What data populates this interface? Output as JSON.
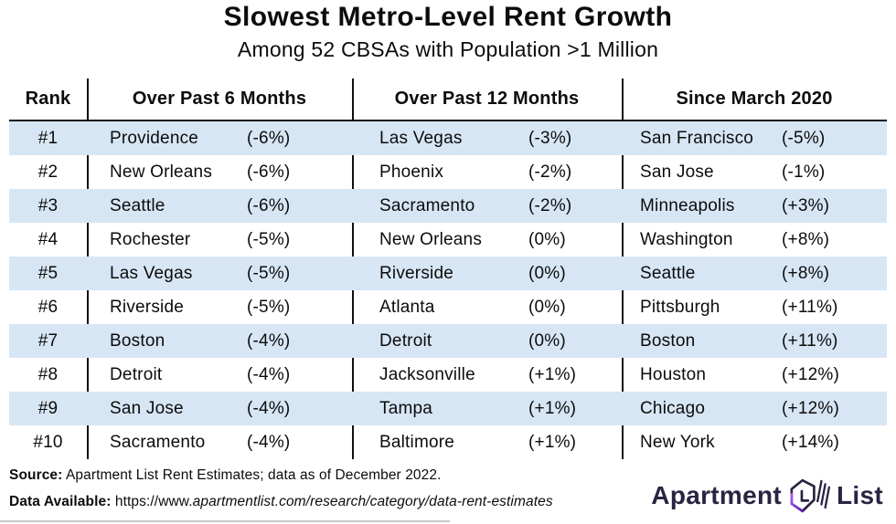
{
  "title": "Slowest Metro-Level Rent Growth",
  "subtitle": "Among 52 CBSAs with Population >1 Million",
  "chart_data": {
    "type": "table",
    "title": "Slowest Metro-Level Rent Growth",
    "subtitle": "Among 52 CBSAs with Population >1 Million",
    "columns": [
      "Rank",
      "Over Past 6 Months",
      "Over Past 12 Months",
      "Since March 2020"
    ],
    "rows": [
      {
        "rank": "#1",
        "m6_city": "Providence",
        "m6_pct": "(-6%)",
        "m12_city": "Las Vegas",
        "m12_pct": "(-3%)",
        "s20_city": "San Francisco",
        "s20_pct": "(-5%)"
      },
      {
        "rank": "#2",
        "m6_city": "New Orleans",
        "m6_pct": "(-6%)",
        "m12_city": "Phoenix",
        "m12_pct": "(-2%)",
        "s20_city": "San Jose",
        "s20_pct": "(-1%)"
      },
      {
        "rank": "#3",
        "m6_city": "Seattle",
        "m6_pct": "(-6%)",
        "m12_city": "Sacramento",
        "m12_pct": "(-2%)",
        "s20_city": "Minneapolis",
        "s20_pct": "(+3%)"
      },
      {
        "rank": "#4",
        "m6_city": "Rochester",
        "m6_pct": "(-5%)",
        "m12_city": "New Orleans",
        "m12_pct": "(0%)",
        "s20_city": "Washington",
        "s20_pct": "(+8%)"
      },
      {
        "rank": "#5",
        "m6_city": "Las Vegas",
        "m6_pct": "(-5%)",
        "m12_city": "Riverside",
        "m12_pct": "(0%)",
        "s20_city": "Seattle",
        "s20_pct": "(+8%)"
      },
      {
        "rank": "#6",
        "m6_city": "Riverside",
        "m6_pct": "(-5%)",
        "m12_city": "Atlanta",
        "m12_pct": "(0%)",
        "s20_city": "Pittsburgh",
        "s20_pct": "(+11%)"
      },
      {
        "rank": "#7",
        "m6_city": "Boston",
        "m6_pct": "(-4%)",
        "m12_city": "Detroit",
        "m12_pct": "(0%)",
        "s20_city": "Boston",
        "s20_pct": "(+11%)"
      },
      {
        "rank": "#8",
        "m6_city": "Detroit",
        "m6_pct": "(-4%)",
        "m12_city": "Jacksonville",
        "m12_pct": "(+1%)",
        "s20_city": "Houston",
        "s20_pct": "(+12%)"
      },
      {
        "rank": "#9",
        "m6_city": "San Jose",
        "m6_pct": "(-4%)",
        "m12_city": "Tampa",
        "m12_pct": "(+1%)",
        "s20_city": "Chicago",
        "s20_pct": "(+12%)"
      },
      {
        "rank": "#10",
        "m6_city": "Sacramento",
        "m6_pct": "(-4%)",
        "m12_city": "Baltimore",
        "m12_pct": "(+1%)",
        "s20_city": "New York",
        "s20_pct": "(+14%)"
      }
    ],
    "series": [
      {
        "name": "Over Past 6 Months",
        "cities": [
          "Providence",
          "New Orleans",
          "Seattle",
          "Rochester",
          "Las Vegas",
          "Riverside",
          "Boston",
          "Detroit",
          "San Jose",
          "Sacramento"
        ],
        "values_pct": [
          -6,
          -6,
          -6,
          -5,
          -5,
          -5,
          -4,
          -4,
          -4,
          -4
        ]
      },
      {
        "name": "Over Past 12 Months",
        "cities": [
          "Las Vegas",
          "Phoenix",
          "Sacramento",
          "New Orleans",
          "Riverside",
          "Atlanta",
          "Detroit",
          "Jacksonville",
          "Tampa",
          "Baltimore"
        ],
        "values_pct": [
          -3,
          -2,
          -2,
          0,
          0,
          0,
          0,
          1,
          1,
          1
        ]
      },
      {
        "name": "Since March 2020",
        "cities": [
          "San Francisco",
          "San Jose",
          "Minneapolis",
          "Washington",
          "Seattle",
          "Pittsburgh",
          "Boston",
          "Houston",
          "Chicago",
          "New York"
        ],
        "values_pct": [
          -5,
          -1,
          3,
          8,
          8,
          11,
          11,
          12,
          12,
          14
        ]
      }
    ]
  },
  "footer": {
    "source_label": "Source:",
    "source_text": " Apartment List Rent Estimates; data as of December 2022.",
    "data_label": "Data Available:",
    "data_url_prefix": " https://www.",
    "data_url_italic": "apartmentlist.com/research/category/data-rent-estimates"
  },
  "logo": {
    "word1": "Apartment",
    "word2": "List"
  },
  "colors": {
    "row_alt_blue": "#d7e6f4",
    "text_black": "#0c0c0c",
    "logo_navy": "#2b2342",
    "logo_purple": "#8137e8"
  }
}
